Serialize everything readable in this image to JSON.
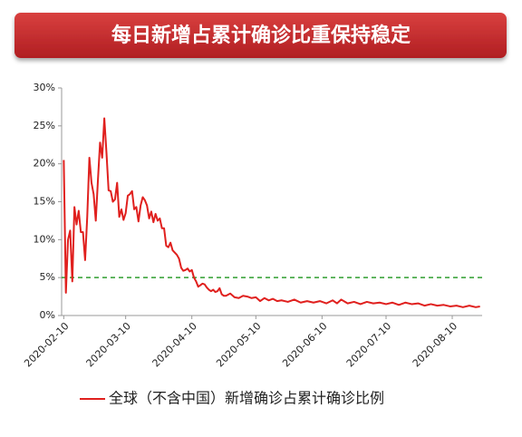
{
  "chart_data": {
    "type": "line",
    "title": "每日新增占累计确诊比重保持稳定",
    "x": [
      "2020-02-10",
      "2020-02-11",
      "2020-02-12",
      "2020-02-13",
      "2020-02-14",
      "2020-02-15",
      "2020-02-16",
      "2020-02-17",
      "2020-02-18",
      "2020-02-19",
      "2020-02-20",
      "2020-02-21",
      "2020-02-22",
      "2020-02-23",
      "2020-02-24",
      "2020-02-25",
      "2020-02-26",
      "2020-02-27",
      "2020-02-28",
      "2020-02-29",
      "2020-03-01",
      "2020-03-02",
      "2020-03-03",
      "2020-03-04",
      "2020-03-05",
      "2020-03-06",
      "2020-03-07",
      "2020-03-08",
      "2020-03-09",
      "2020-03-10",
      "2020-03-11",
      "2020-03-12",
      "2020-03-13",
      "2020-03-14",
      "2020-03-15",
      "2020-03-16",
      "2020-03-17",
      "2020-03-18",
      "2020-03-19",
      "2020-03-20",
      "2020-03-21",
      "2020-03-22",
      "2020-03-23",
      "2020-03-24",
      "2020-03-25",
      "2020-03-26",
      "2020-03-27",
      "2020-03-28",
      "2020-03-29",
      "2020-03-30",
      "2020-03-31",
      "2020-04-01",
      "2020-04-02",
      "2020-04-03",
      "2020-04-04",
      "2020-04-05",
      "2020-04-06",
      "2020-04-07",
      "2020-04-08",
      "2020-04-09",
      "2020-04-10",
      "2020-04-11",
      "2020-04-12",
      "2020-04-13",
      "2020-04-14",
      "2020-04-15",
      "2020-04-16",
      "2020-04-17",
      "2020-04-18",
      "2020-04-19",
      "2020-04-20",
      "2020-04-21",
      "2020-04-22",
      "2020-04-23",
      "2020-04-24",
      "2020-04-25",
      "2020-04-26",
      "2020-04-28",
      "2020-04-30",
      "2020-05-02",
      "2020-05-04",
      "2020-05-06",
      "2020-05-08",
      "2020-05-10",
      "2020-05-12",
      "2020-05-14",
      "2020-05-16",
      "2020-05-18",
      "2020-05-20",
      "2020-05-22",
      "2020-05-25",
      "2020-05-28",
      "2020-05-31",
      "2020-06-03",
      "2020-06-06",
      "2020-06-09",
      "2020-06-12",
      "2020-06-15",
      "2020-06-17",
      "2020-06-19",
      "2020-06-22",
      "2020-06-25",
      "2020-06-28",
      "2020-07-01",
      "2020-07-04",
      "2020-07-07",
      "2020-07-10",
      "2020-07-13",
      "2020-07-16",
      "2020-07-19",
      "2020-07-22",
      "2020-07-25",
      "2020-07-28",
      "2020-07-31",
      "2020-08-03",
      "2020-08-06",
      "2020-08-09",
      "2020-08-12",
      "2020-08-15",
      "2020-08-18",
      "2020-08-21",
      "2020-08-23"
    ],
    "series": [
      {
        "name": "全球（不含中国）新增确诊占累计确诊比例",
        "color": "#e0201e",
        "values": [
          20.5,
          3,
          10,
          11.2,
          4.5,
          14.3,
          12,
          13.8,
          11,
          11,
          7.3,
          13,
          20.8,
          17.5,
          16,
          12.5,
          17.8,
          22.8,
          20.8,
          26,
          21.5,
          16.5,
          16.4,
          15,
          15.3,
          17.5,
          13,
          14,
          12.6,
          13.5,
          15.8,
          16,
          16.4,
          14,
          14.3,
          12.4,
          14.5,
          15.6,
          15.2,
          14.5,
          12.8,
          13.7,
          12.3,
          13.4,
          12.5,
          12.8,
          11.5,
          11.5,
          9.2,
          9,
          9.6,
          8.6,
          8.3,
          8,
          7.5,
          6.3,
          5.9,
          6,
          6.2,
          5.8,
          6,
          5,
          4.5,
          3.8,
          4,
          4.2,
          4.1,
          3.7,
          3.4,
          3.2,
          3.4,
          3.1,
          3.2,
          3.6,
          2.8,
          2.6,
          2.6,
          2.9,
          2.4,
          2.3,
          2.6,
          2.5,
          2.3,
          2.4,
          1.9,
          2.3,
          2,
          2.2,
          1.9,
          2,
          1.8,
          2.1,
          1.7,
          1.9,
          1.7,
          1.9,
          1.6,
          2,
          1.6,
          2.1,
          1.6,
          1.8,
          1.5,
          1.8,
          1.6,
          1.7,
          1.5,
          1.7,
          1.4,
          1.7,
          1.5,
          1.6,
          1.3,
          1.5,
          1.3,
          1.4,
          1.2,
          1.3,
          1.1,
          1.3,
          1.1,
          1.2
        ]
      }
    ],
    "xlim": [
      "2020-02-09",
      "2020-08-24"
    ],
    "xticks": [
      "2020-02-10",
      "2020-03-10",
      "2020-04-10",
      "2020-05-10",
      "2020-06-10",
      "2020-07-10",
      "2020-08-10"
    ],
    "ylim": [
      0,
      30
    ],
    "yticks": [
      {
        "value": 0,
        "label": "0%"
      },
      {
        "value": 5,
        "label": "5%"
      },
      {
        "value": 10,
        "label": "10%"
      },
      {
        "value": 15,
        "label": "15%"
      },
      {
        "value": 20,
        "label": "20%"
      },
      {
        "value": 25,
        "label": "25%"
      },
      {
        "value": 30,
        "label": "30%"
      }
    ],
    "reference_line": {
      "value": 5,
      "color": "#2e9e2e"
    }
  }
}
